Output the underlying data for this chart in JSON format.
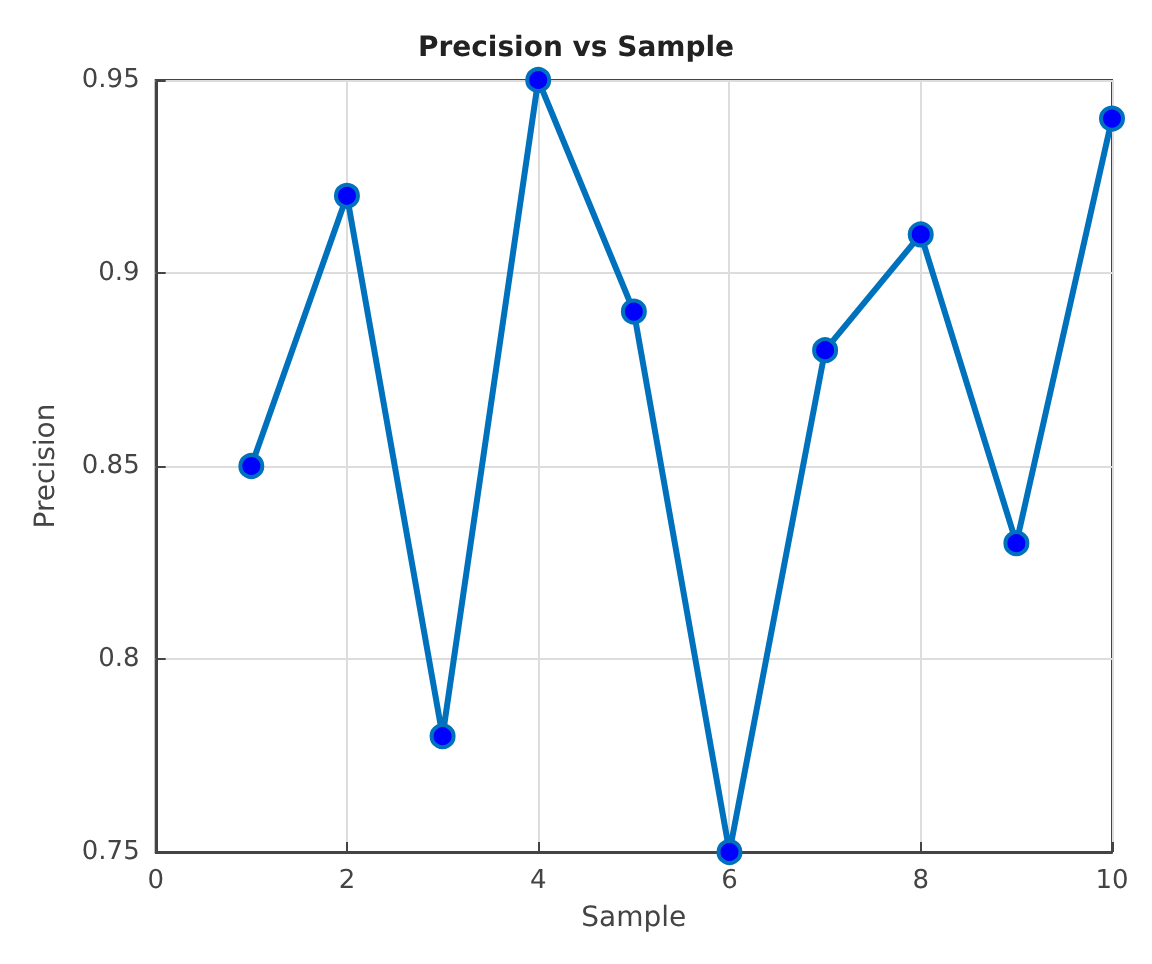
{
  "chart_data": {
    "type": "line",
    "title": "Precision vs Sample",
    "xlabel": "Sample",
    "ylabel": "Precision",
    "x": [
      1,
      2,
      3,
      4,
      5,
      6,
      7,
      8,
      9,
      10
    ],
    "series": [
      {
        "color": "#0072bd",
        "values": [
          0.85,
          0.92,
          0.78,
          0.95,
          0.89,
          0.75,
          0.88,
          0.91,
          0.83,
          0.94
        ]
      }
    ],
    "xlim": [
      0,
      10
    ],
    "xticks": [
      0,
      2,
      4,
      6,
      8,
      10
    ],
    "ylim": [
      0.75,
      0.95
    ],
    "yticks": [
      0.75,
      0.8,
      0.85,
      0.9,
      0.95
    ],
    "grid": true,
    "marker": "circle",
    "line_style": "solid"
  }
}
